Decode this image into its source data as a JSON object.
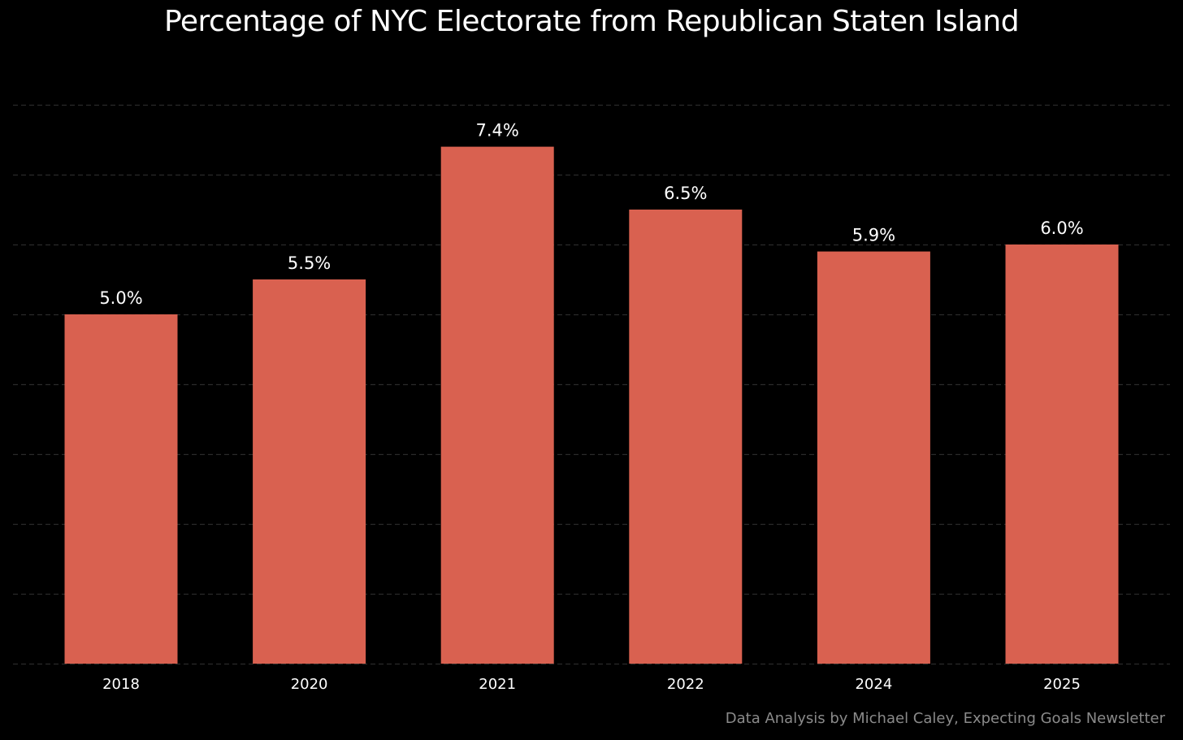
{
  "chart_data": {
    "type": "bar",
    "title": "Percentage of NYC Electorate from Republican Staten Island",
    "categories": [
      "2018",
      "2020",
      "2021",
      "2022",
      "2024",
      "2025"
    ],
    "values": [
      5.0,
      5.5,
      7.4,
      6.5,
      5.9,
      6.0
    ],
    "value_labels": [
      "5.0%",
      "5.5%",
      "7.4%",
      "6.5%",
      "5.9%",
      "6.0%"
    ],
    "xlabel": "",
    "ylabel": "",
    "ylim": [
      0,
      8
    ],
    "gridlines": [
      1,
      2,
      3,
      4,
      5,
      6,
      7,
      8
    ],
    "grid": true,
    "bar_color": "#d96150",
    "grid_color": "#2a2a2a",
    "background_color": "#000000",
    "text_color": "#ffffff"
  },
  "credit": "Data Analysis by Michael Caley, Expecting Goals Newsletter"
}
